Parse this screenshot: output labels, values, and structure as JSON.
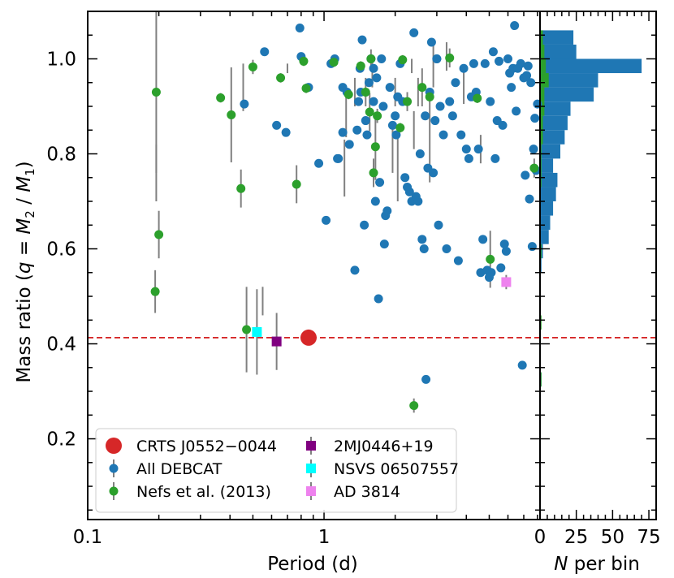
{
  "colors": {
    "debcat": "#1f77b4",
    "nefs": "#2ca02c",
    "crts": "#d62728",
    "mj2": "#800080",
    "nsvs": "#00ffff",
    "ad": "#ee82ee",
    "errbar": "#808080",
    "refline": "#d62728"
  },
  "chart_data": [
    {
      "type": "scatter",
      "xlabel": "Period (d)",
      "ylabel": "Mass ratio (q = M2 / M1)",
      "ylabel_parts": {
        "prefix": "Mass ratio (",
        "q": "q",
        "eq": " = ",
        "m": "M",
        "s2": "2",
        "slash": " / ",
        "s1": "1",
        "close": ")"
      },
      "xscale": "log",
      "xlim": [
        0.1,
        8.2
      ],
      "ylim": [
        0.03,
        1.1
      ],
      "xticks": [
        {
          "v": 0.1,
          "label": "0.1"
        },
        {
          "v": 1,
          "label": "1"
        }
      ],
      "yticks": [
        {
          "v": 0.2,
          "label": "0.2"
        },
        {
          "v": 0.4,
          "label": "0.4"
        },
        {
          "v": 0.6,
          "label": "0.6"
        },
        {
          "v": 0.8,
          "label": "0.8"
        },
        {
          "v": 1.0,
          "label": "1.0"
        }
      ],
      "reference_line": {
        "y": 0.413,
        "style": "dashed"
      },
      "legend": {
        "position": "lower-left",
        "entries": [
          {
            "key": "crts",
            "label": "CRTS J0552−0044"
          },
          {
            "key": "debcat",
            "label": "All DEBCAT"
          },
          {
            "key": "nefs",
            "label": "Nefs et al. (2013)"
          },
          {
            "key": "mj2",
            "label": "2MJ0446+19"
          },
          {
            "key": "nsvs",
            "label": "NSVS 06507557"
          },
          {
            "key": "ad",
            "label": "AD 3814"
          }
        ]
      },
      "series": [
        {
          "key": "debcat",
          "name": "All DEBCAT",
          "marker": "circle",
          "points": [
            [
              0.46,
              0.905
            ],
            [
              0.56,
              1.015
            ],
            [
              0.63,
              0.86
            ],
            [
              0.69,
              0.845
            ],
            [
              0.79,
              1.065
            ],
            [
              0.8,
              1.005
            ],
            [
              0.86,
              0.94
            ],
            [
              0.95,
              0.78
            ],
            [
              1.02,
              0.66
            ],
            [
              1.07,
              0.99
            ],
            [
              1.11,
              1.0
            ],
            [
              1.14,
              0.79
            ],
            [
              1.15,
              0.79
            ],
            [
              1.2,
              0.94
            ],
            [
              1.2,
              0.845
            ],
            [
              1.25,
              0.93
            ],
            [
              1.28,
              0.82
            ],
            [
              1.35,
              0.555
            ],
            [
              1.38,
              0.85
            ],
            [
              1.4,
              0.91
            ],
            [
              1.42,
              0.98
            ],
            [
              1.43,
              0.93
            ],
            [
              1.45,
              1.04
            ],
            [
              1.48,
              0.65
            ],
            [
              1.5,
              0.87
            ],
            [
              1.52,
              0.84
            ],
            [
              1.55,
              0.95
            ],
            [
              1.58,
              1.0
            ],
            [
              1.62,
              0.98
            ],
            [
              1.62,
              0.91
            ],
            [
              1.65,
              0.7
            ],
            [
              1.67,
              0.96
            ],
            [
              1.7,
              0.495
            ],
            [
              1.72,
              0.74
            ],
            [
              1.75,
              1.0
            ],
            [
              1.78,
              0.9
            ],
            [
              1.8,
              0.61
            ],
            [
              1.82,
              0.67
            ],
            [
              1.85,
              0.68
            ],
            [
              1.9,
              0.94
            ],
            [
              1.95,
              0.86
            ],
            [
              2.0,
              0.88
            ],
            [
              2.02,
              0.84
            ],
            [
              2.05,
              0.92
            ],
            [
              2.1,
              0.99
            ],
            [
              2.15,
              0.91
            ],
            [
              2.2,
              0.75
            ],
            [
              2.25,
              0.73
            ],
            [
              2.3,
              0.72
            ],
            [
              2.35,
              0.7
            ],
            [
              2.4,
              1.055
            ],
            [
              2.45,
              0.71
            ],
            [
              2.5,
              0.7
            ],
            [
              2.55,
              0.8
            ],
            [
              2.6,
              0.62
            ],
            [
              2.65,
              0.6
            ],
            [
              2.68,
              0.88
            ],
            [
              2.7,
              0.325
            ],
            [
              2.75,
              0.77
            ],
            [
              2.8,
              0.93
            ],
            [
              2.85,
              1.035
            ],
            [
              2.9,
              0.76
            ],
            [
              2.95,
              0.87
            ],
            [
              3.0,
              1.0
            ],
            [
              3.05,
              0.65
            ],
            [
              3.1,
              0.9
            ],
            [
              3.2,
              0.84
            ],
            [
              3.3,
              0.6
            ],
            [
              3.4,
              0.91
            ],
            [
              3.5,
              0.88
            ],
            [
              3.6,
              0.95
            ],
            [
              3.7,
              0.575
            ],
            [
              3.8,
              0.84
            ],
            [
              3.9,
              0.98
            ],
            [
              4.0,
              0.81
            ],
            [
              4.1,
              0.79
            ],
            [
              4.2,
              0.92
            ],
            [
              4.3,
              0.99
            ],
            [
              4.4,
              0.93
            ],
            [
              4.5,
              0.81
            ],
            [
              4.6,
              0.55
            ],
            [
              4.7,
              0.62
            ],
            [
              4.8,
              0.99
            ],
            [
              4.9,
              0.555
            ],
            [
              5.0,
              0.54
            ],
            [
              5.05,
              0.91
            ],
            [
              5.1,
              0.55
            ],
            [
              5.2,
              1.015
            ],
            [
              5.3,
              0.79
            ],
            [
              5.4,
              0.87
            ],
            [
              5.5,
              0.995
            ],
            [
              5.6,
              0.56
            ],
            [
              5.7,
              0.86
            ],
            [
              5.8,
              0.61
            ],
            [
              5.9,
              0.595
            ],
            [
              6.0,
              1.0
            ],
            [
              6.1,
              0.97
            ],
            [
              6.3,
              0.98
            ],
            [
              6.4,
              1.07
            ],
            [
              6.5,
              0.89
            ],
            [
              6.6,
              0.98
            ],
            [
              6.8,
              0.99
            ],
            [
              6.9,
              0.355
            ],
            [
              7.0,
              0.96
            ],
            [
              7.1,
              0.755
            ],
            [
              7.2,
              0.965
            ],
            [
              7.3,
              0.985
            ],
            [
              7.4,
              0.705
            ],
            [
              7.5,
              0.95
            ],
            [
              7.6,
              0.605
            ],
            [
              7.7,
              0.81
            ],
            [
              7.9,
              0.765
            ],
            [
              8.0,
              0.905
            ],
            [
              7.8,
              0.875
            ],
            [
              6.2,
              0.94
            ],
            [
              3.0,
              1.0
            ]
          ]
        },
        {
          "key": "nefs",
          "name": "Nefs et al. (2013)",
          "marker": "circle",
          "points": [
            [
              0.195,
              0.93,
              0.17
            ],
            [
              0.193,
              0.51,
              0.045
            ],
            [
              0.2,
              0.63,
              0.05
            ],
            [
              0.365,
              0.918,
              0.01
            ],
            [
              0.405,
              0.882,
              0.1
            ],
            [
              0.445,
              0.727,
              0.04
            ],
            [
              0.47,
              0.43,
              0.09
            ],
            [
              0.5,
              0.983,
              0.015
            ],
            [
              0.655,
              0.96,
              0.01
            ],
            [
              0.765,
              0.736,
              0.04
            ],
            [
              0.82,
              0.995,
              0.01
            ],
            [
              0.84,
              0.938,
              0.01
            ],
            [
              1.1,
              0.993,
              0.01
            ],
            [
              1.27,
              0.925,
              0.01
            ],
            [
              1.43,
              0.985,
              0.01
            ],
            [
              1.5,
              0.93,
              0.03
            ],
            [
              1.56,
              0.888,
              0.04
            ],
            [
              1.58,
              1.0,
              0.02
            ],
            [
              1.62,
              0.76,
              0.03
            ],
            [
              1.65,
              0.815,
              0.07
            ],
            [
              1.68,
              0.88,
              0.015
            ],
            [
              2.1,
              0.855,
              0.01
            ],
            [
              2.15,
              0.998,
              0.01
            ],
            [
              2.25,
              0.91,
              0.02
            ],
            [
              2.4,
              0.27,
              0.015
            ],
            [
              2.6,
              0.94,
              0.04
            ],
            [
              2.8,
              0.92,
              0.01
            ],
            [
              3.4,
              1.002,
              0.02
            ],
            [
              4.45,
              0.917,
              0.01
            ],
            [
              5.05,
              0.578,
              0.06
            ],
            [
              7.75,
              0.77,
              0.02
            ]
          ]
        },
        {
          "key": "crts",
          "name": "CRTS J0552−0044",
          "marker": "circle",
          "points": [
            [
              0.86,
              0.413
            ]
          ]
        },
        {
          "key": "mj2",
          "name": "2MJ0446+19",
          "marker": "square",
          "points": [
            [
              0.63,
              0.405,
              0.06
            ]
          ]
        },
        {
          "key": "nsvs",
          "name": "NSVS 06507557",
          "marker": "square",
          "points": [
            [
              0.52,
              0.425,
              0.09
            ]
          ]
        },
        {
          "key": "ad",
          "name": "AD 3814",
          "marker": "square",
          "points": [
            [
              5.9,
              0.53,
              0.015
            ]
          ]
        }
      ],
      "extra_errorbars": [
        [
          0.195,
          0.76,
          0.06
        ],
        [
          0.455,
          0.94,
          0.05
        ],
        [
          0.55,
          0.49,
          0.03
        ],
        [
          0.7,
          0.98,
          0.01
        ],
        [
          1.22,
          0.77,
          0.06
        ],
        [
          1.24,
          0.885,
          0.05
        ],
        [
          1.6,
          0.97,
          0.03
        ],
        [
          1.95,
          0.81,
          0.05
        ],
        [
          2.0,
          0.93,
          0.03
        ],
        [
          2.05,
          0.77,
          0.07
        ],
        [
          2.35,
          0.985,
          0.015
        ],
        [
          2.5,
          0.93,
          0.03
        ],
        [
          2.8,
          0.83,
          0.09
        ],
        [
          2.9,
          0.99,
          0.05
        ],
        [
          3.3,
          1.005,
          0.03
        ],
        [
          3.9,
          0.945,
          0.04
        ],
        [
          4.6,
          0.81,
          0.03
        ],
        [
          2.4,
          0.85,
          0.04
        ],
        [
          1.35,
          0.93,
          0.03
        ]
      ]
    },
    {
      "type": "bar",
      "orientation": "horizontal",
      "xlabel": "N per bin",
      "xlabel_parts": {
        "n": "N",
        "rest": " per bin"
      },
      "xlim": [
        0,
        80
      ],
      "ylim": [
        0.03,
        1.1
      ],
      "xticks": [
        {
          "v": 0,
          "label": "0"
        },
        {
          "v": 25,
          "label": "25"
        },
        {
          "v": 50,
          "label": "50"
        },
        {
          "v": 75,
          "label": "75"
        }
      ],
      "bin_edges": [
        0.22,
        0.25,
        0.28,
        0.31,
        0.34,
        0.37,
        0.4,
        0.43,
        0.46,
        0.49,
        0.52,
        0.55,
        0.58,
        0.61,
        0.64,
        0.67,
        0.7,
        0.73,
        0.76,
        0.79,
        0.82,
        0.85,
        0.88,
        0.91,
        0.94,
        0.97,
        1.0,
        1.03,
        1.06
      ],
      "series": [
        {
          "key": "debcat",
          "name": "All DEBCAT",
          "values": [
            0,
            0,
            0,
            1,
            0,
            0,
            0,
            0,
            0,
            0,
            0,
            1,
            2,
            6,
            7,
            9,
            11,
            12,
            9,
            14,
            17,
            19,
            21,
            37,
            40,
            70,
            25,
            23,
            0
          ]
        },
        {
          "key": "nefs",
          "name": "Nefs et al. (2013)",
          "values": [
            0,
            0,
            0,
            1,
            0,
            0,
            0,
            1,
            0,
            0,
            0,
            0,
            1,
            0,
            0,
            0,
            0,
            1,
            1,
            1,
            2,
            2,
            3,
            3,
            6,
            4,
            3,
            2,
            0
          ]
        }
      ]
    }
  ]
}
